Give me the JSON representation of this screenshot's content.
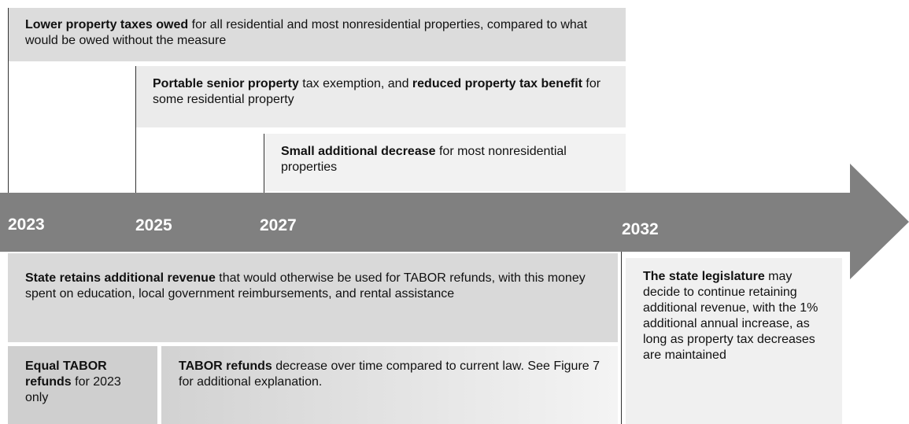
{
  "top_boxes": [
    {
      "segments": [
        {
          "text": "Lower property taxes owed",
          "bold": true
        },
        {
          "text": " for all residential and most nonresidential properties, compared to what would be owed without the measure",
          "bold": false
        }
      ]
    },
    {
      "segments": [
        {
          "text": "Portable senior property",
          "bold": true
        },
        {
          "text": " tax exemption, and ",
          "bold": false
        },
        {
          "text": "reduced property tax benefit",
          "bold": true
        },
        {
          "text": " for some residential property",
          "bold": false
        }
      ]
    },
    {
      "segments": [
        {
          "text": "Small additional decrease",
          "bold": true
        },
        {
          "text": " for most nonresidential properties",
          "bold": false
        }
      ]
    }
  ],
  "years": [
    "2023",
    "2025",
    "2027",
    "2032"
  ],
  "bottom_boxes": [
    {
      "segments": [
        {
          "text": "State retains additional revenue",
          "bold": true
        },
        {
          "text": " that would otherwise be used for TABOR refunds, with this money spent on education, local government reimbursements, and rental assistance",
          "bold": false
        }
      ]
    },
    {
      "segments": [
        {
          "text": "Equal TABOR refunds",
          "bold": true
        },
        {
          "text": " for 2023 only",
          "bold": false
        }
      ]
    },
    {
      "segments": [
        {
          "text": "TABOR refunds",
          "bold": true
        },
        {
          "text": " decrease over time compared to current law. See Figure 7 for additional explanation.",
          "bold": false
        }
      ]
    },
    {
      "segments": [
        {
          "text": "The state legislature",
          "bold": true
        },
        {
          "text": " may decide to continue retaining additional revenue, with the 1% additional annual increase, as long as property tax decreases are maintained",
          "bold": false
        }
      ]
    }
  ]
}
